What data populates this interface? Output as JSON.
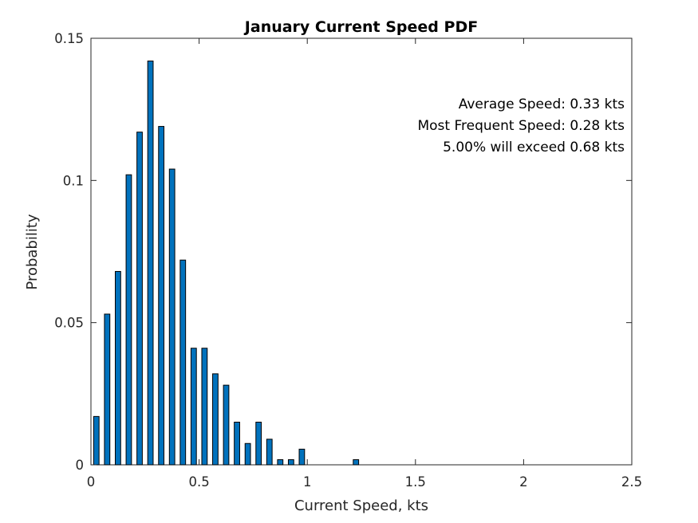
{
  "chart_data": {
    "type": "bar",
    "title": "January Current Speed PDF",
    "xlabel": "Current Speed, kts",
    "ylabel": "Probability",
    "xlim": [
      0,
      2.5
    ],
    "ylim": [
      0,
      0.15
    ],
    "xticks": [
      0,
      0.5,
      1,
      1.5,
      2,
      2.5
    ],
    "xtick_labels": [
      "0",
      "0.5",
      "1",
      "1.5",
      "2",
      "2.5"
    ],
    "yticks": [
      0,
      0.05,
      0.1,
      0.15
    ],
    "ytick_labels": [
      "0",
      "0.05",
      "0.1",
      "0.15"
    ],
    "grid": false,
    "bar_color": "#0072BD",
    "bin_width": 0.05,
    "x": [
      0.025,
      0.075,
      0.125,
      0.175,
      0.225,
      0.275,
      0.325,
      0.375,
      0.425,
      0.475,
      0.525,
      0.575,
      0.625,
      0.675,
      0.725,
      0.775,
      0.825,
      0.875,
      0.925,
      0.975,
      1.025,
      1.075,
      1.125,
      1.175,
      1.225,
      1.275,
      1.325,
      1.375,
      1.425,
      1.475,
      1.525,
      1.575,
      1.625,
      1.675,
      1.725,
      1.775,
      1.825,
      1.875,
      1.925,
      1.975,
      2.025,
      2.075,
      2.125,
      2.175,
      2.225,
      2.275,
      2.325,
      2.375,
      2.425,
      2.475
    ],
    "values": [
      0.017,
      0.053,
      0.068,
      0.102,
      0.117,
      0.142,
      0.119,
      0.104,
      0.072,
      0.041,
      0.041,
      0.032,
      0.028,
      0.015,
      0.0075,
      0.015,
      0.009,
      0.0018,
      0.0018,
      0.0055,
      0,
      0,
      0,
      0,
      0.0018,
      0,
      0,
      0,
      0,
      0,
      0,
      0,
      0,
      0,
      0,
      0,
      0,
      0,
      0,
      0,
      0,
      0,
      0,
      0,
      0,
      0,
      0,
      0,
      0,
      0
    ],
    "annotations": [
      "Average Speed: 0.33 kts",
      "Most Frequent Speed: 0.28 kts",
      "5.00% will exceed 0.68 kts"
    ]
  }
}
